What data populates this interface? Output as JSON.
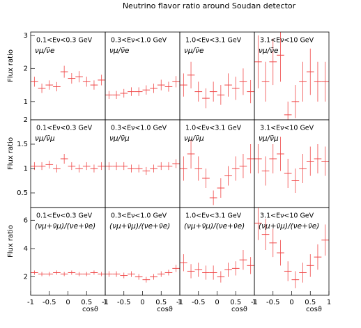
{
  "title": "Neutrino flavor ratio around Soudan detector",
  "chart_data": [
    {
      "type": "histogram",
      "label": "0.1<Eν<0.3 GeV",
      "ratio": "νμ/ν̄e",
      "ylabel": "Flux ratio",
      "bins": [
        -1,
        -0.8,
        -0.6,
        -0.4,
        -0.2,
        0,
        0.2,
        0.4,
        0.6,
        0.8,
        1
      ],
      "values": [
        1.6,
        1.4,
        1.5,
        1.45,
        1.9,
        1.7,
        1.75,
        1.6,
        1.5,
        1.65
      ],
      "errors": [
        0.15,
        0.14,
        0.14,
        0.14,
        0.18,
        0.16,
        0.17,
        0.15,
        0.14,
        0.16
      ],
      "xlim": [
        -1,
        1
      ],
      "ylim": [
        0.45,
        3.1
      ],
      "yticks": [
        1,
        2,
        3
      ],
      "color": "#f04848"
    },
    {
      "type": "histogram",
      "label": "0.3<Eν<1.0 GeV",
      "ratio": "νμ/ν̄e",
      "bins": [
        -1,
        -0.8,
        -0.6,
        -0.4,
        -0.2,
        0,
        0.2,
        0.4,
        0.6,
        0.8,
        1
      ],
      "values": [
        1.2,
        1.2,
        1.25,
        1.3,
        1.3,
        1.35,
        1.4,
        1.5,
        1.45,
        1.6
      ],
      "errors": [
        0.12,
        0.12,
        0.13,
        0.13,
        0.13,
        0.14,
        0.14,
        0.16,
        0.15,
        0.17
      ],
      "xlim": [
        -1,
        1
      ],
      "ylim": [
        0.45,
        3.1
      ],
      "color": "#f04848"
    },
    {
      "type": "histogram",
      "label": "1.0<Eν<3.1 GeV",
      "ratio": "νμ/ν̄e",
      "bins": [
        -1,
        -0.8,
        -0.6,
        -0.4,
        -0.2,
        0,
        0.2,
        0.4,
        0.6,
        0.8,
        1
      ],
      "values": [
        1.5,
        1.8,
        1.3,
        1.1,
        1.3,
        1.2,
        1.5,
        1.4,
        1.6,
        1.3
      ],
      "errors": [
        0.35,
        0.4,
        0.3,
        0.3,
        0.3,
        0.3,
        0.35,
        0.35,
        0.4,
        0.35
      ],
      "xlim": [
        -1,
        1
      ],
      "ylim": [
        0.45,
        3.1
      ],
      "color": "#f04848"
    },
    {
      "type": "histogram",
      "label": "3.1<Eν<10 GeV",
      "ratio": "νμ/ν̄e",
      "bins": [
        -1,
        -0.8,
        -0.6,
        -0.4,
        -0.2,
        0,
        0.2,
        0.4,
        0.6,
        0.8,
        1
      ],
      "values": [
        2.2,
        1.6,
        2.2,
        2.4,
        0.6,
        1.0,
        1.6,
        1.9,
        1.6,
        1.6
      ],
      "errors": [
        0.8,
        0.6,
        0.7,
        0.8,
        0.4,
        0.5,
        0.6,
        0.7,
        0.6,
        0.6
      ],
      "xlim": [
        -1,
        1
      ],
      "ylim": [
        0.45,
        3.1
      ],
      "color": "#f04848"
    },
    {
      "type": "histogram",
      "label": "0.1<Eν<0.3 GeV",
      "ratio": "νμ/ν̄μ",
      "ylabel": "Flux ratio",
      "bins": [
        -1,
        -0.8,
        -0.6,
        -0.4,
        -0.2,
        0,
        0.2,
        0.4,
        0.6,
        0.8,
        1
      ],
      "values": [
        1.05,
        1.05,
        1.08,
        1.0,
        1.2,
        1.05,
        1.0,
        1.05,
        1.0,
        1.05
      ],
      "errors": [
        0.08,
        0.08,
        0.08,
        0.08,
        0.1,
        0.08,
        0.08,
        0.08,
        0.08,
        0.08
      ],
      "xlim": [
        -1,
        1
      ],
      "ylim": [
        0.2,
        2
      ],
      "yticks": [
        0.5,
        1,
        1.5,
        2
      ],
      "color": "#f04848"
    },
    {
      "type": "histogram",
      "label": "0.3<Eν<1.0 GeV",
      "ratio": "νμ/ν̄μ",
      "bins": [
        -1,
        -0.8,
        -0.6,
        -0.4,
        -0.2,
        0,
        0.2,
        0.4,
        0.6,
        0.8,
        1
      ],
      "values": [
        1.05,
        1.05,
        1.05,
        1.0,
        1.0,
        0.95,
        1.0,
        1.05,
        1.05,
        1.1
      ],
      "errors": [
        0.08,
        0.08,
        0.08,
        0.08,
        0.08,
        0.08,
        0.08,
        0.08,
        0.08,
        0.09
      ],
      "xlim": [
        -1,
        1
      ],
      "ylim": [
        0.2,
        2
      ],
      "color": "#f04848"
    },
    {
      "type": "histogram",
      "label": "1.0<Eν<3.1 GeV",
      "ratio": "νμ/ν̄μ",
      "bins": [
        -1,
        -0.8,
        -0.6,
        -0.4,
        -0.2,
        0,
        0.2,
        0.4,
        0.6,
        0.8,
        1
      ],
      "values": [
        1.0,
        1.3,
        1.0,
        0.8,
        0.4,
        0.6,
        0.85,
        1.0,
        1.05,
        1.2
      ],
      "errors": [
        0.25,
        0.3,
        0.25,
        0.2,
        0.15,
        0.2,
        0.2,
        0.25,
        0.25,
        0.3
      ],
      "xlim": [
        -1,
        1
      ],
      "ylim": [
        0.2,
        2
      ],
      "color": "#f04848"
    },
    {
      "type": "histogram",
      "label": "3.1<Eν<10 GeV",
      "ratio": "νμ/ν̄μ",
      "bins": [
        -1,
        -0.8,
        -0.6,
        -0.4,
        -0.2,
        0,
        0.2,
        0.4,
        0.6,
        0.8,
        1
      ],
      "values": [
        1.2,
        0.95,
        1.2,
        1.3,
        0.9,
        0.75,
        1.0,
        1.15,
        1.2,
        1.15
      ],
      "errors": [
        0.3,
        0.3,
        0.3,
        0.35,
        0.3,
        0.25,
        0.3,
        0.3,
        0.3,
        0.3
      ],
      "xlim": [
        -1,
        1
      ],
      "ylim": [
        0.2,
        2
      ],
      "color": "#f04848"
    },
    {
      "type": "histogram",
      "label": "0.1<Eν<0.3 GeV",
      "ratio": "(νμ+ν̄μ)/(νe+ν̄e)",
      "ylabel": "Flux ratio",
      "xlabel": "cosϑ",
      "bins": [
        -1,
        -0.8,
        -0.6,
        -0.4,
        -0.2,
        0,
        0.2,
        0.4,
        0.6,
        0.8,
        1
      ],
      "values": [
        2.3,
        2.2,
        2.2,
        2.3,
        2.2,
        2.3,
        2.2,
        2.2,
        2.3,
        2.2
      ],
      "errors": [
        0.15,
        0.15,
        0.15,
        0.15,
        0.15,
        0.15,
        0.15,
        0.15,
        0.15,
        0.15
      ],
      "xlim": [
        -1,
        1
      ],
      "ylim": [
        0.7,
        6.9
      ],
      "yticks": [
        2,
        4,
        6
      ],
      "xticks": [
        -1,
        -0.5,
        0,
        0.5,
        1
      ],
      "color": "#f04848"
    },
    {
      "type": "histogram",
      "label": "0.3<Eν<1.0 GeV",
      "ratio": "(νμ+ν̄μ)/(νe+ν̄e)",
      "xlabel": "cosϑ",
      "bins": [
        -1,
        -0.8,
        -0.6,
        -0.4,
        -0.2,
        0,
        0.2,
        0.4,
        0.6,
        0.8,
        1
      ],
      "values": [
        2.2,
        2.2,
        2.1,
        2.2,
        2.0,
        1.8,
        2.0,
        2.2,
        2.3,
        2.6
      ],
      "errors": [
        0.2,
        0.2,
        0.2,
        0.2,
        0.2,
        0.2,
        0.2,
        0.2,
        0.2,
        0.25
      ],
      "xlim": [
        -1,
        1
      ],
      "ylim": [
        0.7,
        6.9
      ],
      "xticks": [
        -1,
        -0.5,
        0,
        0.5,
        1
      ],
      "color": "#f04848"
    },
    {
      "type": "histogram",
      "label": "1.0<Eν<3.1 GeV",
      "ratio": "(νμ+ν̄μ)/(νe+ν̄e)",
      "xlabel": "cosϑ",
      "bins": [
        -1,
        -0.8,
        -0.6,
        -0.4,
        -0.2,
        0,
        0.2,
        0.4,
        0.6,
        0.8,
        1
      ],
      "values": [
        3.0,
        2.4,
        2.5,
        2.3,
        2.3,
        2.0,
        2.5,
        2.6,
        3.2,
        2.8
      ],
      "errors": [
        0.6,
        0.5,
        0.5,
        0.5,
        0.5,
        0.4,
        0.5,
        0.5,
        0.7,
        0.6
      ],
      "xlim": [
        -1,
        1
      ],
      "ylim": [
        0.7,
        6.9
      ],
      "xticks": [
        -1,
        -0.5,
        0,
        0.5,
        1
      ],
      "color": "#f04848"
    },
    {
      "type": "histogram",
      "label": "3.1<Eν<10 GeV",
      "ratio": "(νμ+ν̄μ)/(νe+ν̄e)",
      "xlabel": "cosϑ",
      "bins": [
        -1,
        -0.8,
        -0.6,
        -0.4,
        -0.2,
        0,
        0.2,
        0.4,
        0.6,
        0.8,
        1
      ],
      "values": [
        5.8,
        5.0,
        4.4,
        3.7,
        2.4,
        1.8,
        2.3,
        2.8,
        3.4,
        4.6
      ],
      "errors": [
        1.2,
        1.1,
        1.0,
        0.9,
        0.7,
        0.6,
        0.7,
        0.8,
        0.9,
        1.1
      ],
      "xlim": [
        -1,
        1
      ],
      "ylim": [
        0.7,
        6.9
      ],
      "xticks": [
        -1,
        -0.5,
        0,
        0.5,
        1
      ],
      "color": "#f04848"
    }
  ]
}
